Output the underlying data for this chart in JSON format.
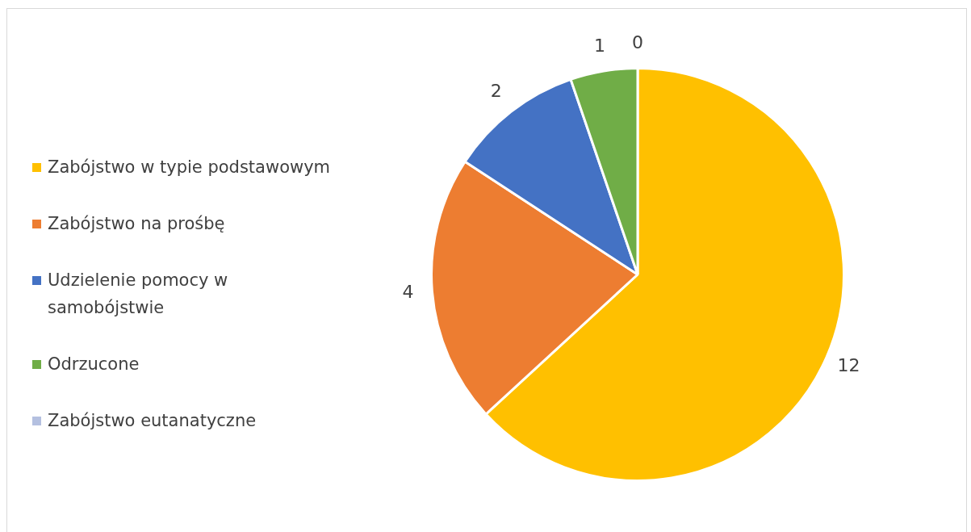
{
  "chart_data": {
    "type": "pie",
    "categories": [
      "Zabójstwo w typie podstawowym",
      "Zabójstwo na prośbę",
      "Udzielenie pomocy w samobójstwie",
      "Odrzucone",
      "Zabójstwo eutanatyczne"
    ],
    "values": [
      12,
      4,
      2,
      1,
      0
    ],
    "colors": [
      "#ffc000",
      "#ed7d31",
      "#4472c4",
      "#70ad47",
      "#b4c0e0"
    ],
    "value_labels": [
      "12",
      "4",
      "2",
      "1",
      "0"
    ],
    "legend": "left"
  }
}
